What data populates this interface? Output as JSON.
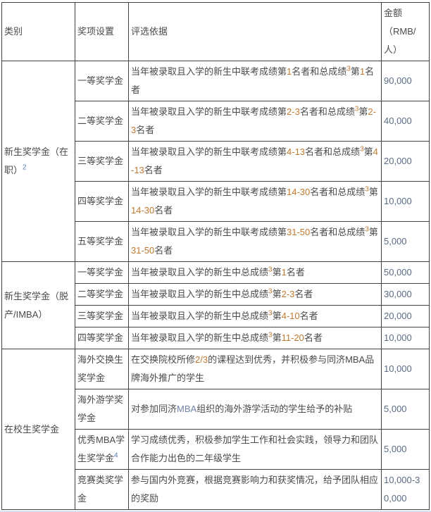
{
  "colors": {
    "border": "#414141",
    "text": "#4a4a4a",
    "digit_highlight": "#c1792f",
    "footnote_link": "#5580bd",
    "latin_highlight": "#7183a9",
    "amount_text": "#5b6c85",
    "bottom_strip": "#d9e4f2"
  },
  "header": {
    "category": "类别",
    "award": "奖项设置",
    "criteria": "评选依据",
    "amount": "金额\n（RMB/\n人）"
  },
  "sections": [
    {
      "category": [
        {
          "t": "新生奖学金（在职）",
          "s": "text"
        },
        {
          "t": "2",
          "s": "fn"
        }
      ],
      "rows": [
        {
          "award": [
            {
              "t": "一等奖学金",
              "s": "text"
            }
          ],
          "criteria": [
            {
              "t": "当年被录取且入学的新生中联考成绩第",
              "s": "text"
            },
            {
              "t": "1",
              "s": "num"
            },
            {
              "t": "名者和总成绩",
              "s": "text"
            },
            {
              "t": "3",
              "s": "sup"
            },
            {
              "t": "第",
              "s": "text"
            },
            {
              "t": "1",
              "s": "num"
            },
            {
              "t": "名者",
              "s": "text"
            }
          ],
          "amount": "90,000"
        },
        {
          "award": [
            {
              "t": "二等奖学金",
              "s": "text"
            }
          ],
          "criteria": [
            {
              "t": "当年被录取且入学的新生中联考成绩第",
              "s": "text"
            },
            {
              "t": "2-3",
              "s": "num"
            },
            {
              "t": "名者和总成绩",
              "s": "text"
            },
            {
              "t": "3",
              "s": "sup"
            },
            {
              "t": "第",
              "s": "text"
            },
            {
              "t": "2-3",
              "s": "num"
            },
            {
              "t": "名者",
              "s": "text"
            }
          ],
          "amount": "40,000"
        },
        {
          "award": [
            {
              "t": "三等奖学金",
              "s": "text"
            }
          ],
          "criteria": [
            {
              "t": "当年被录取且入学的新生中联考成绩第",
              "s": "text"
            },
            {
              "t": "4-13",
              "s": "num"
            },
            {
              "t": "名者和总成绩",
              "s": "text"
            },
            {
              "t": "3",
              "s": "sup"
            },
            {
              "t": "第",
              "s": "text"
            },
            {
              "t": "4-13",
              "s": "num"
            },
            {
              "t": "名者",
              "s": "text"
            }
          ],
          "amount": "20,000"
        },
        {
          "award": [
            {
              "t": "四等奖学金",
              "s": "text"
            }
          ],
          "criteria": [
            {
              "t": "当年被录取且入学的新生中联考成绩第",
              "s": "text"
            },
            {
              "t": "14-30",
              "s": "num"
            },
            {
              "t": "名者和总成绩",
              "s": "text"
            },
            {
              "t": "3",
              "s": "sup"
            },
            {
              "t": "第",
              "s": "text"
            },
            {
              "t": "14-30",
              "s": "num"
            },
            {
              "t": "名者",
              "s": "text"
            }
          ],
          "amount": "10,000"
        },
        {
          "award": [
            {
              "t": "五等奖学金",
              "s": "text"
            }
          ],
          "criteria": [
            {
              "t": "当年被录取且入学的新生中联考成绩第",
              "s": "text"
            },
            {
              "t": "31-50",
              "s": "num"
            },
            {
              "t": "名者和总成绩",
              "s": "text"
            },
            {
              "t": "3",
              "s": "sup"
            },
            {
              "t": "第",
              "s": "text"
            },
            {
              "t": "31-50",
              "s": "num"
            },
            {
              "t": "名者",
              "s": "text"
            }
          ],
          "amount": "5,000"
        }
      ]
    },
    {
      "category": [
        {
          "t": "新生奖学金（脱产/IMBA）",
          "s": "text"
        }
      ],
      "rows": [
        {
          "award": [
            {
              "t": "一等奖学金",
              "s": "text"
            }
          ],
          "criteria": [
            {
              "t": "当年被录取且入学的新生中总成绩",
              "s": "text"
            },
            {
              "t": "3",
              "s": "sup"
            },
            {
              "t": "第",
              "s": "text"
            },
            {
              "t": "1",
              "s": "num"
            },
            {
              "t": "名者",
              "s": "text"
            }
          ],
          "amount": "50,000"
        },
        {
          "award": [
            {
              "t": "二等奖学金",
              "s": "text"
            }
          ],
          "criteria": [
            {
              "t": "当年被录取且入学的新生中总成绩",
              "s": "text"
            },
            {
              "t": "3",
              "s": "sup"
            },
            {
              "t": "第",
              "s": "text"
            },
            {
              "t": "2-3",
              "s": "num"
            },
            {
              "t": "名者",
              "s": "text"
            }
          ],
          "amount": "30,000"
        },
        {
          "award": [
            {
              "t": "三等奖学金",
              "s": "text"
            }
          ],
          "criteria": [
            {
              "t": "当年被录取且入学的新生中总成绩",
              "s": "text"
            },
            {
              "t": "3",
              "s": "sup"
            },
            {
              "t": "第",
              "s": "text"
            },
            {
              "t": "4-10",
              "s": "num"
            },
            {
              "t": "名者",
              "s": "text"
            }
          ],
          "amount": "20,000"
        },
        {
          "award": [
            {
              "t": "四等奖学金",
              "s": "text"
            }
          ],
          "criteria": [
            {
              "t": "当年被录取且入学的新生中总成绩",
              "s": "text"
            },
            {
              "t": "3",
              "s": "sup"
            },
            {
              "t": "第",
              "s": "text"
            },
            {
              "t": "11-20",
              "s": "num"
            },
            {
              "t": "名者",
              "s": "text"
            }
          ],
          "amount": "10,000"
        }
      ]
    },
    {
      "category": [
        {
          "t": "在校生奖学金",
          "s": "text"
        }
      ],
      "rows": [
        {
          "award": [
            {
              "t": "海外交换生奖学金",
              "s": "text"
            }
          ],
          "criteria": [
            {
              "t": "在交换院校所修",
              "s": "text"
            },
            {
              "t": "2/3",
              "s": "num"
            },
            {
              "t": "的课程达到优秀，并积极参与同济MBA品牌海外推广的学生",
              "s": "text"
            }
          ],
          "amount": "10,000"
        },
        {
          "award": [
            {
              "t": "海外游学奖学金",
              "s": "text"
            }
          ],
          "criteria": [
            {
              "t": "对参加同济",
              "s": "text"
            },
            {
              "t": "MBA",
              "s": "lat"
            },
            {
              "t": "组织的海外游学活动的学生给予的补贴",
              "s": "text"
            }
          ],
          "amount": "5,000"
        },
        {
          "award": [
            {
              "t": "优秀MBA学生奖学金",
              "s": "text"
            },
            {
              "t": "4",
              "s": "fn"
            }
          ],
          "criteria": [
            {
              "t": "学习成绩优秀，积极参加学生工作和社会实践，领导力和团队合作能力出色的二年级学生",
              "s": "text"
            }
          ],
          "amount": "5,000"
        },
        {
          "award": [
            {
              "t": "竞赛类奖学金",
              "s": "text"
            }
          ],
          "criteria": [
            {
              "t": "参与国内外竞赛，根据竞赛影响力和获奖情况，给予团队相应的奖励",
              "s": "text"
            }
          ],
          "amount": "10,000-30,000"
        }
      ]
    }
  ]
}
